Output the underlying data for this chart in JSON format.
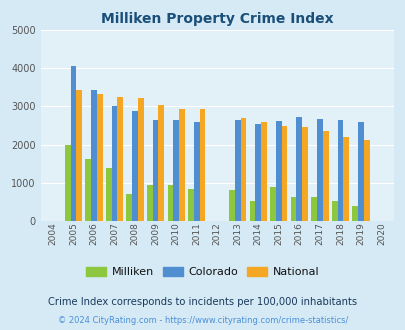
{
  "title": "Milliken Property Crime Index",
  "years": [
    "2004",
    "2005",
    "2006",
    "2007",
    "2008",
    "2009",
    "2010",
    "2011",
    "2012",
    "2013",
    "2014",
    "2015",
    "2016",
    "2017",
    "2018",
    "2019",
    "2020"
  ],
  "milliken": [
    0,
    1980,
    1620,
    1400,
    700,
    950,
    950,
    830,
    0,
    800,
    520,
    900,
    630,
    630,
    520,
    390,
    0
  ],
  "colorado": [
    0,
    4050,
    3430,
    3000,
    2880,
    2650,
    2650,
    2600,
    0,
    2650,
    2540,
    2620,
    2720,
    2680,
    2650,
    2580,
    0
  ],
  "national": [
    0,
    3430,
    3330,
    3230,
    3210,
    3040,
    2940,
    2920,
    0,
    2700,
    2580,
    2490,
    2450,
    2360,
    2190,
    2130,
    0
  ],
  "milliken_color": "#8dc63f",
  "colorado_color": "#4f8fd1",
  "national_color": "#f5a623",
  "fig_bg": "#d6eaf5",
  "plot_bg": "#e2f0f7",
  "title_color": "#1a4f7a",
  "grid_color": "#ffffff",
  "footnote1": "Crime Index corresponds to incidents per 100,000 inhabitants",
  "footnote2": "© 2024 CityRating.com - https://www.cityrating.com/crime-statistics/",
  "ylim": [
    0,
    5000
  ],
  "yticks": [
    0,
    1000,
    2000,
    3000,
    4000,
    5000
  ],
  "bar_width": 0.28
}
